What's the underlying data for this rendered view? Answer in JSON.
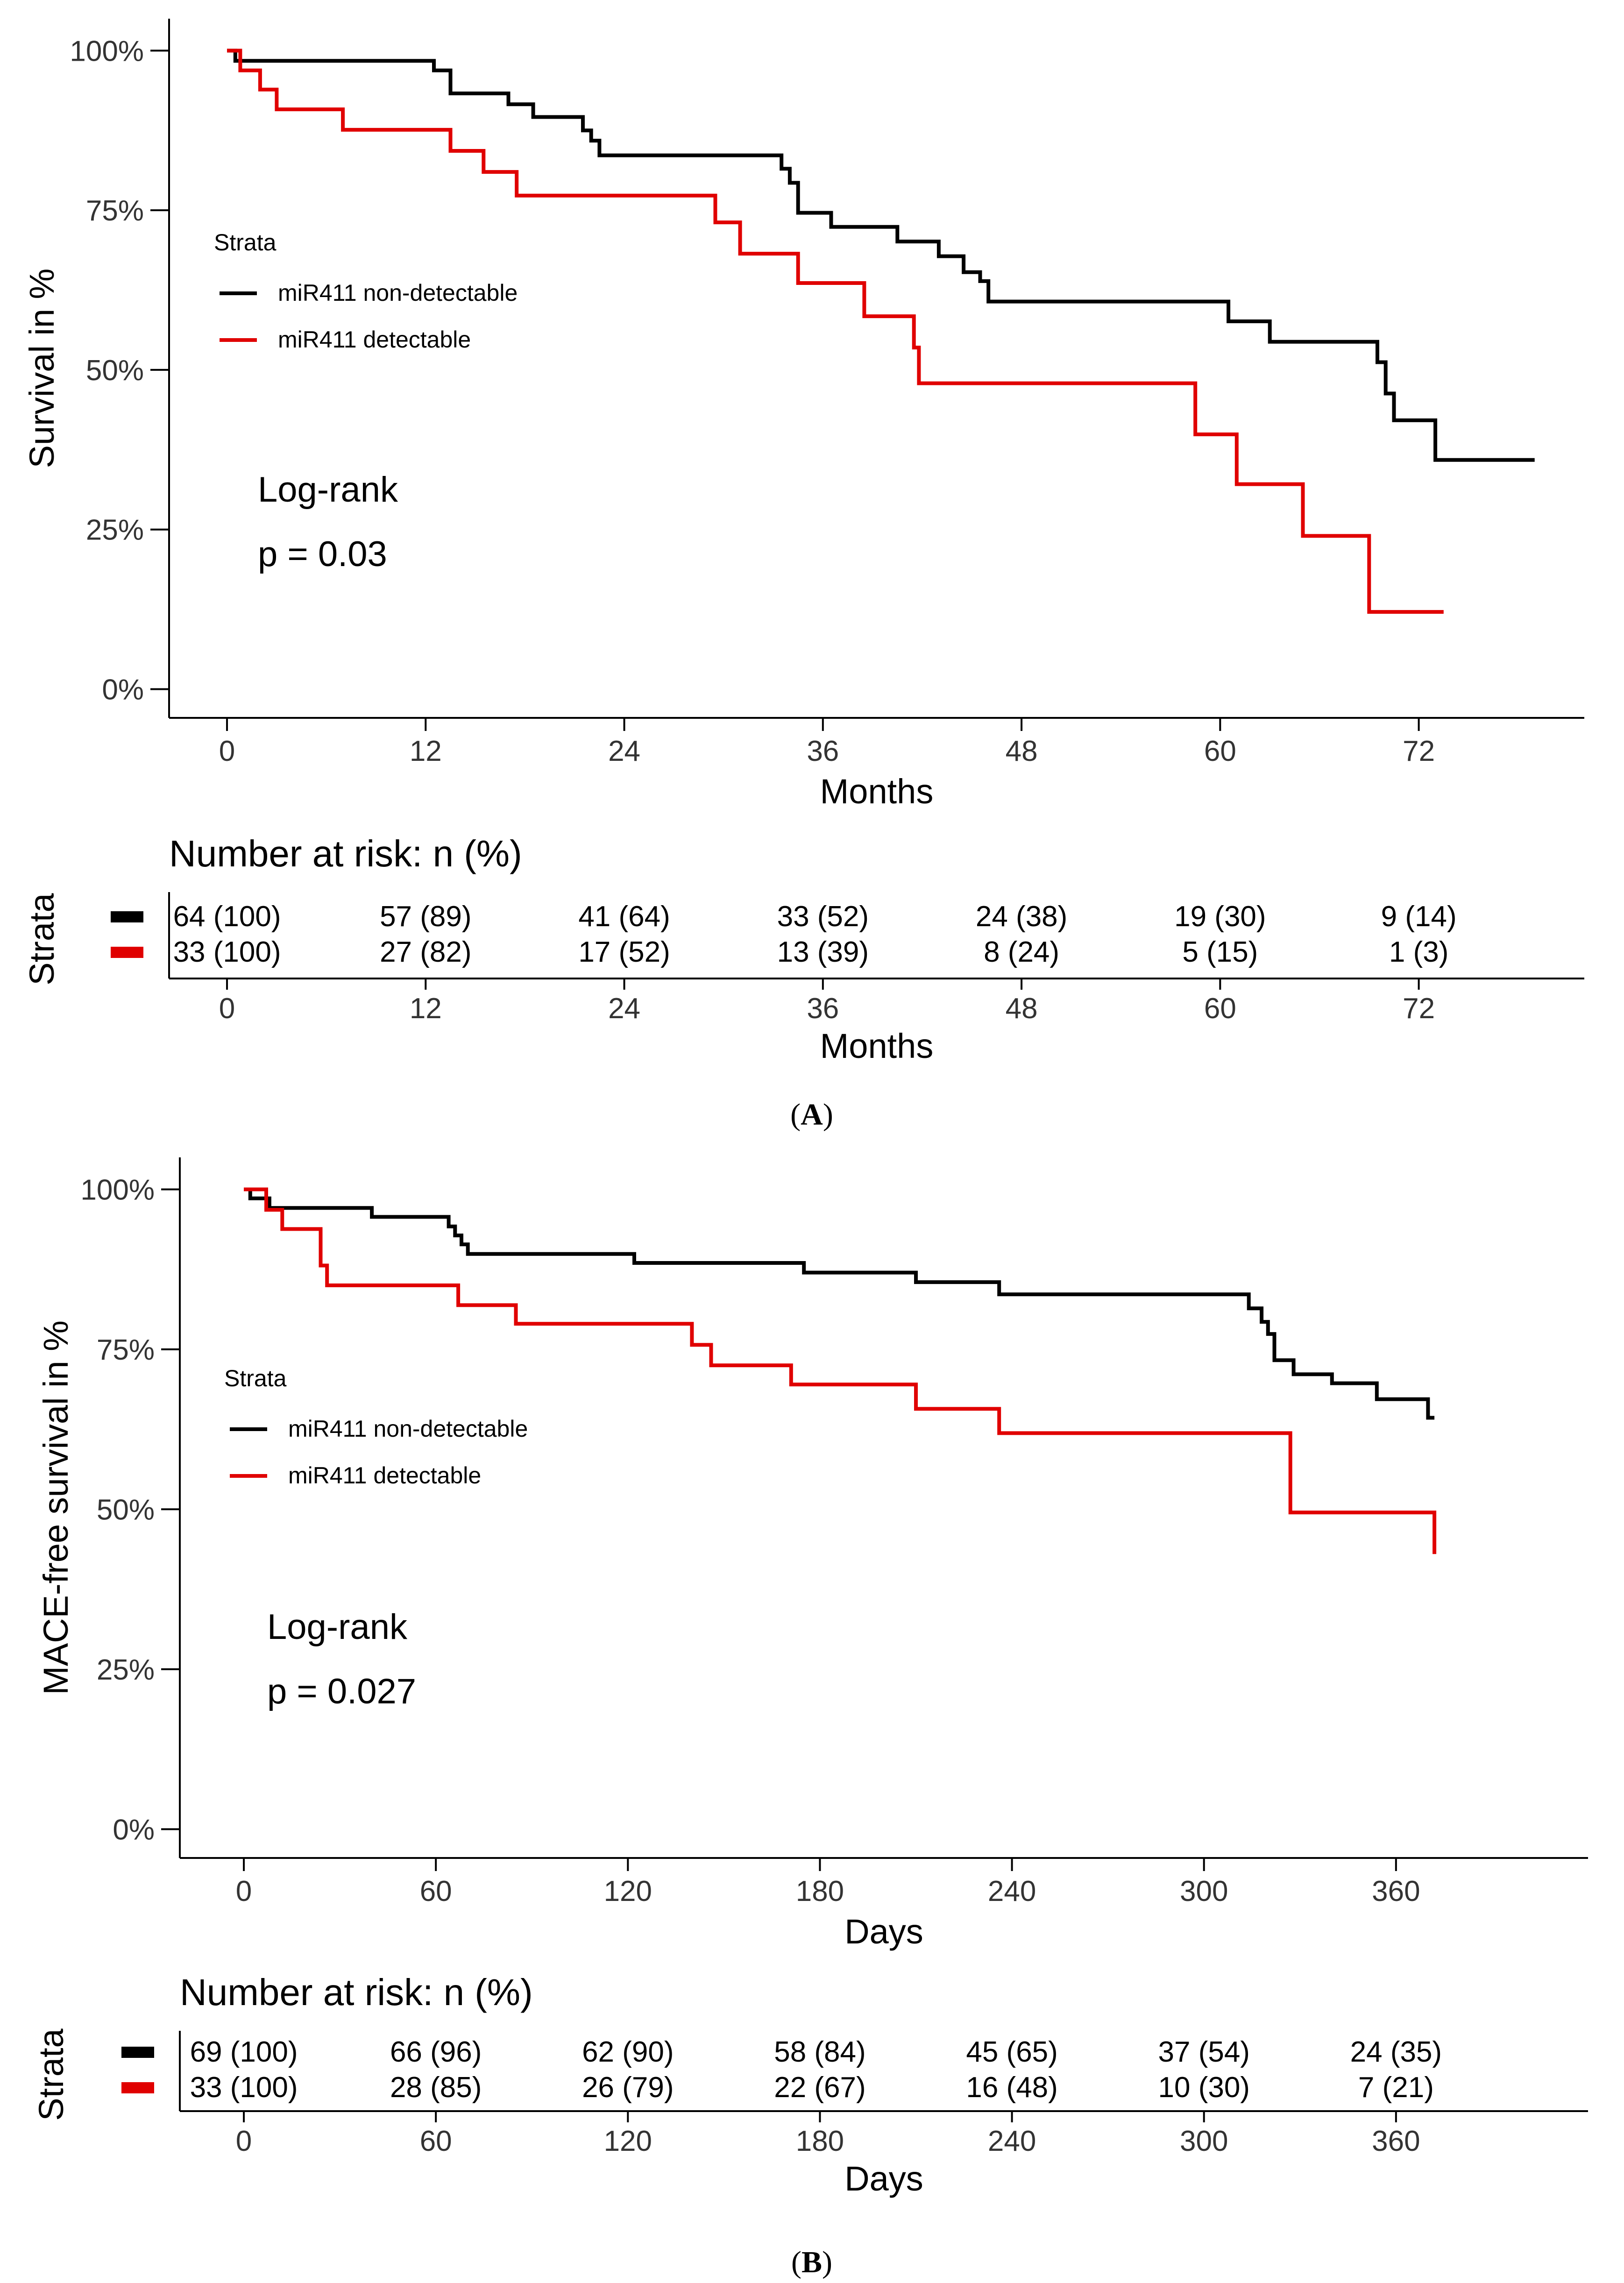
{
  "figure": {
    "panels": [
      {
        "caption_open": "(",
        "caption_letter": "A",
        "caption_close": ")"
      },
      {
        "caption_open": "(",
        "caption_letter": "B",
        "caption_close": ")"
      }
    ]
  },
  "chart_data": [
    {
      "type": "line",
      "subtype": "kaplan-meier",
      "title": "",
      "xlabel": "Months",
      "ylabel": "Survival in %",
      "xlim": [
        -3.5,
        82
      ],
      "ylim": [
        -4.5,
        105
      ],
      "x_ticks": [
        0,
        12,
        24,
        36,
        48,
        60,
        72
      ],
      "x_tick_labels": [
        "0",
        "12",
        "24",
        "36",
        "48",
        "60",
        "72"
      ],
      "y_ticks": [
        0,
        25,
        50,
        75,
        100
      ],
      "y_tick_labels": [
        "0%",
        "25%",
        "50%",
        "75%",
        "100%"
      ],
      "grid": false,
      "legend_title": "Strata",
      "legend_position": "center-left",
      "annotation_line1": "Log-rank",
      "annotation_line2": "p = 0.03",
      "series": [
        {
          "name": "miR411 non-detectable",
          "color": "#000000",
          "x": [
            0,
            0.5,
            12.5,
            13.5,
            17,
            18.5,
            21.5,
            22,
            22.5,
            33.5,
            34,
            34.5,
            36.5,
            40.5,
            43,
            44.5,
            45.5,
            46,
            60.5,
            63,
            69.5,
            70,
            70.5,
            73,
            79
          ],
          "y": [
            100,
            98.4,
            96.9,
            93.3,
            91.6,
            89.6,
            87.5,
            85.9,
            83.6,
            81.5,
            79.3,
            74.6,
            72.4,
            70.1,
            67.8,
            65.3,
            63.9,
            60.7,
            57.6,
            54.4,
            51.2,
            46.3,
            42.1,
            35.9,
            35.9
          ]
        },
        {
          "name": "miR411 detectable",
          "color": "#e00000",
          "x": [
            0,
            0.8,
            2,
            3,
            7,
            13.5,
            15.5,
            17.5,
            29.5,
            31,
            34.5,
            38.5,
            41.5,
            41.8,
            58.5,
            61,
            65,
            69,
            73.5
          ],
          "y": [
            100,
            96.9,
            93.9,
            90.8,
            87.6,
            84.3,
            81,
            77.3,
            73.1,
            68.2,
            63.6,
            58.4,
            53.5,
            47.9,
            39.9,
            32.1,
            24,
            12.1,
            12.1
          ]
        }
      ],
      "risk_table": {
        "title": "Number at risk: n (%)",
        "ylabel": "Strata",
        "xlabel": "Months",
        "times": [
          0,
          12,
          24,
          36,
          48,
          60,
          72
        ],
        "time_labels": [
          "0",
          "12",
          "24",
          "36",
          "48",
          "60",
          "72"
        ],
        "rows": [
          {
            "name": "miR411 non-detectable",
            "color": "#000000",
            "values": [
              "64 (100)",
              "57 (89)",
              "41 (64)",
              "33 (52)",
              "24 (38)",
              "19 (30)",
              "9 (14)"
            ]
          },
          {
            "name": "miR411 detectable",
            "color": "#e00000",
            "values": [
              "33 (100)",
              "27 (82)",
              "17 (52)",
              "13 (39)",
              "8 (24)",
              "5 (15)",
              "1 (3)"
            ]
          }
        ]
      }
    },
    {
      "type": "line",
      "subtype": "kaplan-meier",
      "title": "",
      "xlabel": "Days",
      "ylabel": "MACE-free survival in %",
      "xlim": [
        -20,
        420
      ],
      "ylim": [
        -4.5,
        105
      ],
      "x_ticks": [
        0,
        60,
        120,
        180,
        240,
        300,
        360
      ],
      "x_tick_labels": [
        "0",
        "60",
        "120",
        "180",
        "240",
        "300",
        "360"
      ],
      "y_ticks": [
        0,
        25,
        50,
        75,
        100
      ],
      "y_tick_labels": [
        "0%",
        "25%",
        "50%",
        "75%",
        "100%"
      ],
      "grid": false,
      "legend_title": "Strata",
      "legend_position": "center-left",
      "annotation_line1": "Log-rank",
      "annotation_line2": "p = 0.027",
      "series": [
        {
          "name": "miR411 non-detectable",
          "color": "#000000",
          "x": [
            0,
            2,
            8,
            40,
            64,
            66,
            68,
            70,
            122,
            175,
            210,
            236,
            314,
            318,
            320,
            322,
            328,
            340,
            354,
            370,
            372
          ],
          "y": [
            100,
            98.6,
            97.1,
            95.7,
            94.2,
            92.8,
            91.4,
            89.9,
            88.5,
            87,
            85.5,
            83.6,
            81.4,
            79.3,
            77.4,
            73.3,
            71.1,
            69.7,
            67.2,
            64.3,
            64.3
          ]
        },
        {
          "name": "miR411 detectable",
          "color": "#e00000",
          "x": [
            0,
            7,
            12,
            24,
            26,
            67,
            85,
            140,
            146,
            171,
            210,
            236,
            327,
            372
          ],
          "y": [
            100,
            96.8,
            93.8,
            88.1,
            85,
            81.9,
            79,
            75.7,
            72.5,
            69.5,
            65.7,
            61.9,
            49.5,
            43
          ]
        }
      ],
      "risk_table": {
        "title": "Number at risk: n (%)",
        "ylabel": "Strata",
        "xlabel": "Days",
        "times": [
          0,
          60,
          120,
          180,
          240,
          300,
          360
        ],
        "time_labels": [
          "0",
          "60",
          "120",
          "180",
          "240",
          "300",
          "360"
        ],
        "rows": [
          {
            "name": "miR411 non-detectable",
            "color": "#000000",
            "values": [
              "69 (100)",
              "66 (96)",
              "62 (90)",
              "58 (84)",
              "45 (65)",
              "37 (54)",
              "24 (35)"
            ]
          },
          {
            "name": "miR411 detectable",
            "color": "#e00000",
            "values": [
              "33 (100)",
              "28 (85)",
              "26 (79)",
              "22 (67)",
              "16 (48)",
              "10 (30)",
              "7 (21)"
            ]
          }
        ]
      }
    }
  ]
}
